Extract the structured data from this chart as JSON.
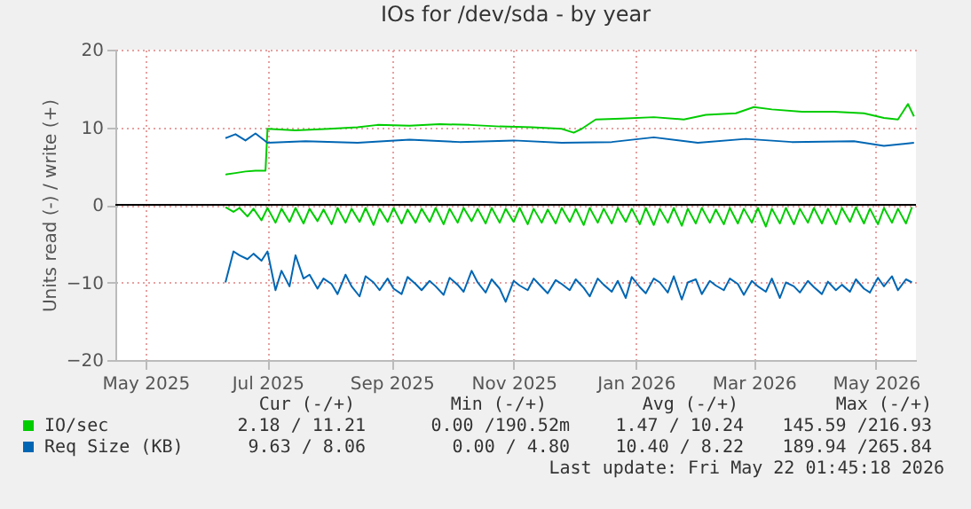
{
  "chart_data": {
    "type": "line",
    "title": "IOs for /dev/sda - by year",
    "ylabel": "Units read (-) / write (+)",
    "xlim": [
      "2025-04-16",
      "2026-05-21"
    ],
    "ylim": [
      -20,
      20
    ],
    "yticks": [
      -20,
      -10,
      0,
      10,
      20
    ],
    "xticks": [
      {
        "value": "2025-05-01",
        "label": "May 2025"
      },
      {
        "value": "2025-07-01",
        "label": "Jul 2025"
      },
      {
        "value": "2025-09-01",
        "label": "Sep 2025"
      },
      {
        "value": "2025-11-01",
        "label": "Nov 2025"
      },
      {
        "value": "2026-01-01",
        "label": "Jan 2026"
      },
      {
        "value": "2026-03-01",
        "label": "Mar 2026"
      },
      {
        "value": "2026-05-01",
        "label": "May 2026"
      }
    ],
    "grid": true,
    "legend": "bottom",
    "ref_lines": [
      {
        "axis": "y",
        "value": 0,
        "color": "#000000"
      }
    ],
    "series": [
      {
        "name": "IO/sec",
        "color": "#00cc00",
        "x": [
          "2025-06-10",
          "2025-06-15",
          "2025-06-20",
          "2025-06-25",
          "2025-06-30",
          "2025-07-01",
          "2025-07-15",
          "2025-08-01",
          "2025-08-15",
          "2025-08-25",
          "2025-09-10",
          "2025-09-25",
          "2025-10-10",
          "2025-10-25",
          "2025-11-10",
          "2025-11-25",
          "2025-12-01",
          "2025-12-05",
          "2025-12-12",
          "2025-12-25",
          "2026-01-10",
          "2026-01-25",
          "2026-02-05",
          "2026-02-20",
          "2026-03-01",
          "2026-03-10",
          "2026-03-25",
          "2026-04-10",
          "2026-04-25",
          "2026-05-05",
          "2026-05-12",
          "2026-05-17",
          "2026-05-20"
        ],
        "values": [
          3.9,
          4.1,
          4.3,
          4.4,
          4.4,
          9.8,
          9.6,
          9.8,
          10.0,
          10.3,
          10.2,
          10.4,
          10.3,
          10.1,
          10.0,
          9.8,
          9.3,
          9.8,
          11.0,
          11.1,
          11.3,
          11.0,
          11.6,
          11.8,
          12.6,
          12.3,
          12.0,
          12.0,
          11.8,
          11.2,
          11.0,
          13.0,
          11.4
        ]
      },
      {
        "color": "#00cc00",
        "x": [
          "2025-06-10",
          "2025-06-14",
          "2025-06-17",
          "2025-06-21",
          "2025-06-24",
          "2025-06-28",
          "2025-07-01",
          "2025-07-05",
          "2025-07-08",
          "2025-07-12",
          "2025-07-15",
          "2025-07-19",
          "2025-07-22",
          "2025-07-26",
          "2025-07-29",
          "2025-08-02",
          "2025-08-05",
          "2025-08-09",
          "2025-08-12",
          "2025-08-16",
          "2025-08-19",
          "2025-08-23",
          "2025-08-26",
          "2025-08-30",
          "2025-09-02",
          "2025-09-06",
          "2025-09-09",
          "2025-09-13",
          "2025-09-16",
          "2025-09-20",
          "2025-09-23",
          "2025-09-27",
          "2025-09-30",
          "2025-10-04",
          "2025-10-07",
          "2025-10-11",
          "2025-10-14",
          "2025-10-18",
          "2025-10-21",
          "2025-10-25",
          "2025-10-28",
          "2025-11-01",
          "2025-11-04",
          "2025-11-08",
          "2025-11-11",
          "2025-11-15",
          "2025-11-18",
          "2025-11-22",
          "2025-11-25",
          "2025-11-29",
          "2025-12-02",
          "2025-12-06",
          "2025-12-09",
          "2025-12-13",
          "2025-12-16",
          "2025-12-20",
          "2025-12-23",
          "2025-12-27",
          "2025-12-30",
          "2026-01-03",
          "2026-01-06",
          "2026-01-10",
          "2026-01-13",
          "2026-01-17",
          "2026-01-20",
          "2026-01-24",
          "2026-01-27",
          "2026-01-31",
          "2026-02-03",
          "2026-02-07",
          "2026-02-10",
          "2026-02-14",
          "2026-02-17",
          "2026-02-21",
          "2026-02-24",
          "2026-02-28",
          "2026-03-03",
          "2026-03-07",
          "2026-03-10",
          "2026-03-14",
          "2026-03-17",
          "2026-03-21",
          "2026-03-24",
          "2026-03-28",
          "2026-03-31",
          "2026-04-04",
          "2026-04-07",
          "2026-04-11",
          "2026-04-14",
          "2026-04-18",
          "2026-04-21",
          "2026-04-25",
          "2026-04-28",
          "2026-05-02",
          "2026-05-05",
          "2026-05-09",
          "2026-05-12",
          "2026-05-16",
          "2026-05-19"
        ],
        "values": [
          -0.3,
          -0.9,
          -0.4,
          -1.5,
          -0.5,
          -2.0,
          -0.4,
          -2.3,
          -0.5,
          -2.2,
          -0.4,
          -2.4,
          -0.5,
          -2.1,
          -0.6,
          -2.5,
          -0.4,
          -2.3,
          -0.5,
          -2.2,
          -0.4,
          -2.6,
          -0.5,
          -2.2,
          -0.4,
          -2.4,
          -0.6,
          -2.3,
          -0.5,
          -2.2,
          -0.4,
          -2.5,
          -0.5,
          -2.3,
          -0.4,
          -2.1,
          -0.5,
          -2.4,
          -0.4,
          -2.3,
          -0.5,
          -2.2,
          -0.4,
          -2.5,
          -0.5,
          -2.3,
          -0.6,
          -2.4,
          -0.4,
          -2.2,
          -0.5,
          -2.6,
          -0.4,
          -2.3,
          -0.5,
          -2.4,
          -0.4,
          -2.2,
          -0.5,
          -2.5,
          -0.4,
          -2.6,
          -0.5,
          -2.3,
          -0.4,
          -2.7,
          -0.5,
          -2.4,
          -0.4,
          -2.3,
          -0.6,
          -2.5,
          -0.4,
          -2.4,
          -0.5,
          -2.3,
          -0.4,
          -2.8,
          -0.5,
          -2.4,
          -0.4,
          -2.5,
          -0.5,
          -2.3,
          -0.4,
          -2.4,
          -0.5,
          -2.5,
          -0.4,
          -2.2,
          -0.3,
          -2.4,
          -0.5,
          -2.5,
          -0.4,
          -2.3,
          -0.5,
          -2.4,
          -0.3
        ]
      },
      {
        "name": "Req Size (KB)",
        "color": "#0066b3",
        "x": [
          "2025-06-10",
          "2025-06-15",
          "2025-06-20",
          "2025-06-25",
          "2025-07-01",
          "2025-07-20",
          "2025-08-15",
          "2025-09-10",
          "2025-10-05",
          "2025-11-01",
          "2025-11-25",
          "2025-12-20",
          "2026-01-10",
          "2026-02-01",
          "2026-02-25",
          "2026-03-20",
          "2026-04-20",
          "2026-05-05",
          "2026-05-20"
        ],
        "values": [
          8.6,
          9.1,
          8.3,
          9.2,
          8.0,
          8.2,
          8.0,
          8.4,
          8.1,
          8.3,
          8.0,
          8.1,
          8.7,
          8.0,
          8.5,
          8.1,
          8.2,
          7.6,
          8.0
        ]
      },
      {
        "color": "#0066b3",
        "x": [
          "2025-06-10",
          "2025-06-14",
          "2025-06-17",
          "2025-06-21",
          "2025-06-24",
          "2025-06-28",
          "2025-07-01",
          "2025-07-05",
          "2025-07-08",
          "2025-07-12",
          "2025-07-15",
          "2025-07-19",
          "2025-07-22",
          "2025-07-26",
          "2025-07-29",
          "2025-08-02",
          "2025-08-05",
          "2025-08-09",
          "2025-08-12",
          "2025-08-16",
          "2025-08-19",
          "2025-08-23",
          "2025-08-26",
          "2025-08-30",
          "2025-09-02",
          "2025-09-06",
          "2025-09-09",
          "2025-09-13",
          "2025-09-16",
          "2025-09-20",
          "2025-09-23",
          "2025-09-27",
          "2025-09-30",
          "2025-10-04",
          "2025-10-07",
          "2025-10-11",
          "2025-10-14",
          "2025-10-18",
          "2025-10-21",
          "2025-10-25",
          "2025-10-28",
          "2025-11-01",
          "2025-11-04",
          "2025-11-08",
          "2025-11-11",
          "2025-11-15",
          "2025-11-18",
          "2025-11-22",
          "2025-11-25",
          "2025-11-29",
          "2025-12-02",
          "2025-12-06",
          "2025-12-09",
          "2025-12-13",
          "2025-12-16",
          "2025-12-20",
          "2025-12-23",
          "2025-12-27",
          "2025-12-30",
          "2026-01-03",
          "2026-01-06",
          "2026-01-10",
          "2026-01-13",
          "2026-01-17",
          "2026-01-20",
          "2026-01-24",
          "2026-01-27",
          "2026-01-31",
          "2026-02-03",
          "2026-02-07",
          "2026-02-10",
          "2026-02-14",
          "2026-02-17",
          "2026-02-21",
          "2026-02-24",
          "2026-02-28",
          "2026-03-03",
          "2026-03-07",
          "2026-03-10",
          "2026-03-14",
          "2026-03-17",
          "2026-03-21",
          "2026-03-24",
          "2026-03-28",
          "2026-03-31",
          "2026-04-04",
          "2026-04-07",
          "2026-04-11",
          "2026-04-14",
          "2026-04-18",
          "2026-04-21",
          "2026-04-25",
          "2026-04-28",
          "2026-05-02",
          "2026-05-05",
          "2026-05-09",
          "2026-05-12",
          "2026-05-16",
          "2026-05-19"
        ],
        "values": [
          -10,
          -6.0,
          -6.5,
          -7.0,
          -6.3,
          -7.2,
          -6.0,
          -11.0,
          -8.5,
          -10.5,
          -6.5,
          -9.5,
          -9.0,
          -10.8,
          -9.5,
          -10.2,
          -11.5,
          -9.0,
          -10.5,
          -11.8,
          -9.2,
          -10.0,
          -11.0,
          -9.5,
          -10.8,
          -11.5,
          -9.3,
          -10.2,
          -11.0,
          -9.8,
          -10.5,
          -11.6,
          -9.4,
          -10.3,
          -11.2,
          -8.5,
          -10.0,
          -11.3,
          -9.6,
          -10.8,
          -12.5,
          -9.8,
          -10.4,
          -11.0,
          -9.5,
          -10.6,
          -11.4,
          -9.7,
          -10.2,
          -11.0,
          -9.6,
          -10.7,
          -11.8,
          -9.5,
          -10.3,
          -11.2,
          -9.8,
          -12.0,
          -9.3,
          -10.6,
          -11.4,
          -9.5,
          -10.0,
          -11.3,
          -9.2,
          -12.2,
          -10.0,
          -9.6,
          -11.5,
          -9.8,
          -10.4,
          -11.0,
          -9.5,
          -10.2,
          -11.6,
          -9.8,
          -10.5,
          -11.2,
          -9.5,
          -12.0,
          -10.0,
          -10.5,
          -11.3,
          -9.8,
          -10.6,
          -11.5,
          -9.9,
          -11.0,
          -10.3,
          -11.2,
          -9.6,
          -10.8,
          -11.3,
          -9.4,
          -10.5,
          -9.2,
          -11.0,
          -9.6,
          -10.0
        ]
      }
    ],
    "annotations": [
      "Cur (-/+)",
      "Min (-/+)",
      "Avg (-/+)",
      "Max (-/+)",
      "2.18 / 11.21",
      "0.00 /190.52m",
      "1.47 / 10.24",
      "145.59 /216.93",
      "9.63 /  8.06",
      "0.00 /  4.80",
      "10.40 /  8.22",
      "189.94 /265.84",
      "Last update: Fri May 22 01:45:18 2026"
    ]
  }
}
